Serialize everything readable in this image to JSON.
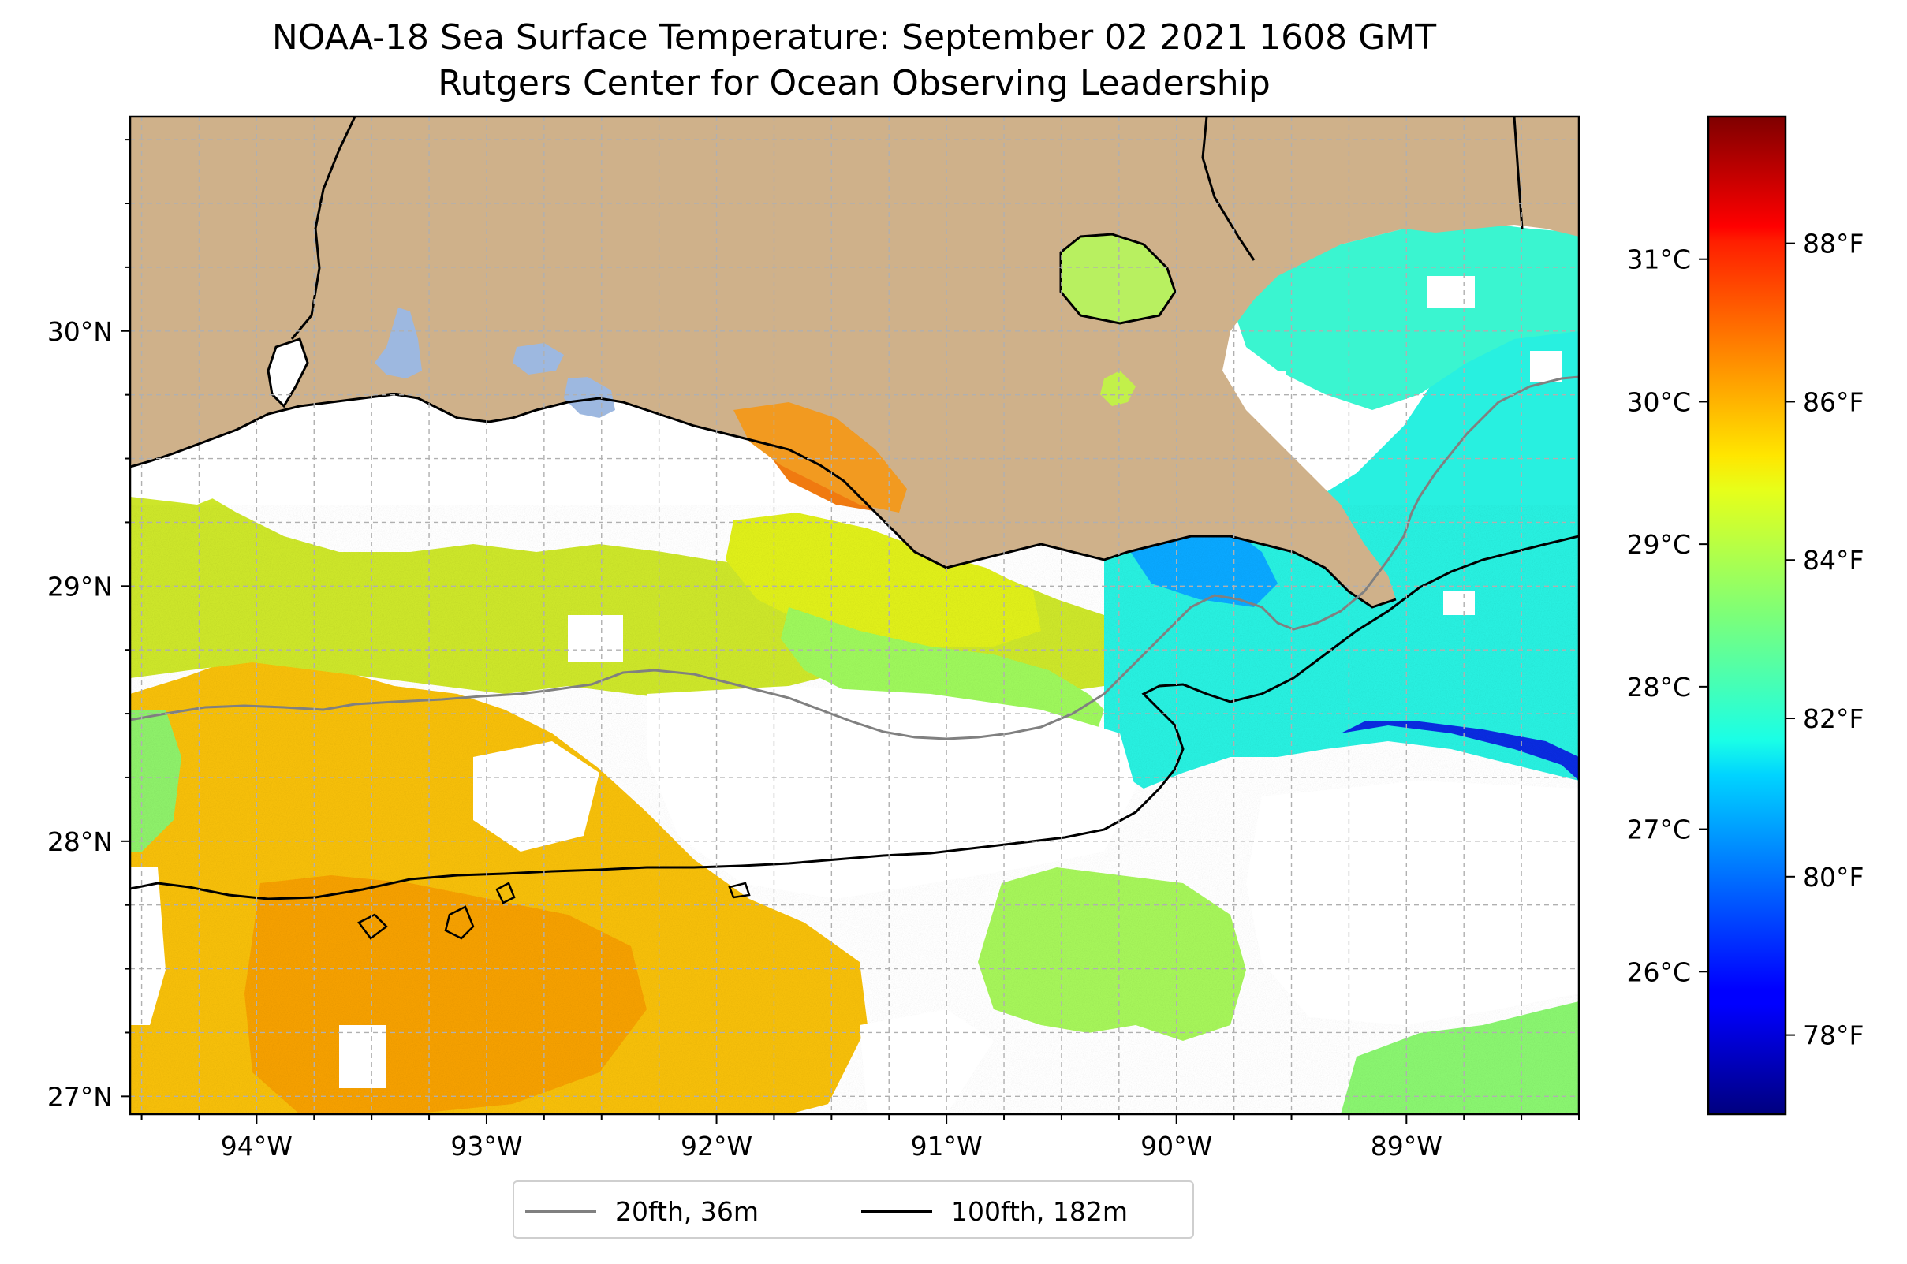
{
  "title": {
    "line1": "NOAA-18 Sea Surface Temperature: September 02 2021 1608 GMT",
    "line2": "Rutgers Center for Ocean Observing Leadership"
  },
  "map": {
    "lon_range": [
      -94.55,
      -88.25
    ],
    "lat_range": [
      26.93,
      30.84
    ],
    "lon_ticks": [
      {
        "value": -94,
        "label": "94°W"
      },
      {
        "value": -93,
        "label": "93°W"
      },
      {
        "value": -92,
        "label": "92°W"
      },
      {
        "value": -91,
        "label": "91°W"
      },
      {
        "value": -90,
        "label": "90°W"
      },
      {
        "value": -89,
        "label": "89°W"
      }
    ],
    "lat_ticks": [
      {
        "value": 27,
        "label": "27°N"
      },
      {
        "value": 28,
        "label": "28°N"
      },
      {
        "value": 29,
        "label": "29°N"
      },
      {
        "value": 30,
        "label": "30°N"
      }
    ],
    "gridlines": true,
    "colors": {
      "land": "#cfb18a",
      "water_inland": "#9db8e0",
      "no_data": "#ffffff",
      "isobath_20fth": "#808080",
      "isobath_100fth": "#000000"
    }
  },
  "colorbar": {
    "colormap": "jet",
    "range_f": [
      77.0,
      89.6
    ],
    "celsius_ticks": [
      {
        "value": 26,
        "label": "26°C"
      },
      {
        "value": 27,
        "label": "27°C"
      },
      {
        "value": 28,
        "label": "28°C"
      },
      {
        "value": 29,
        "label": "29°C"
      },
      {
        "value": 30,
        "label": "30°C"
      },
      {
        "value": 31,
        "label": "31°C"
      }
    ],
    "fahrenheit_ticks": [
      {
        "value": 78,
        "label": "78°F"
      },
      {
        "value": 80,
        "label": "80°F"
      },
      {
        "value": 82,
        "label": "82°F"
      },
      {
        "value": 84,
        "label": "84°F"
      },
      {
        "value": 86,
        "label": "86°F"
      },
      {
        "value": 88,
        "label": "88°F"
      }
    ]
  },
  "legend": {
    "items": [
      {
        "label": "20fth, 36m",
        "color": "#808080"
      },
      {
        "label": "100fth, 182m",
        "color": "#000000"
      }
    ]
  }
}
